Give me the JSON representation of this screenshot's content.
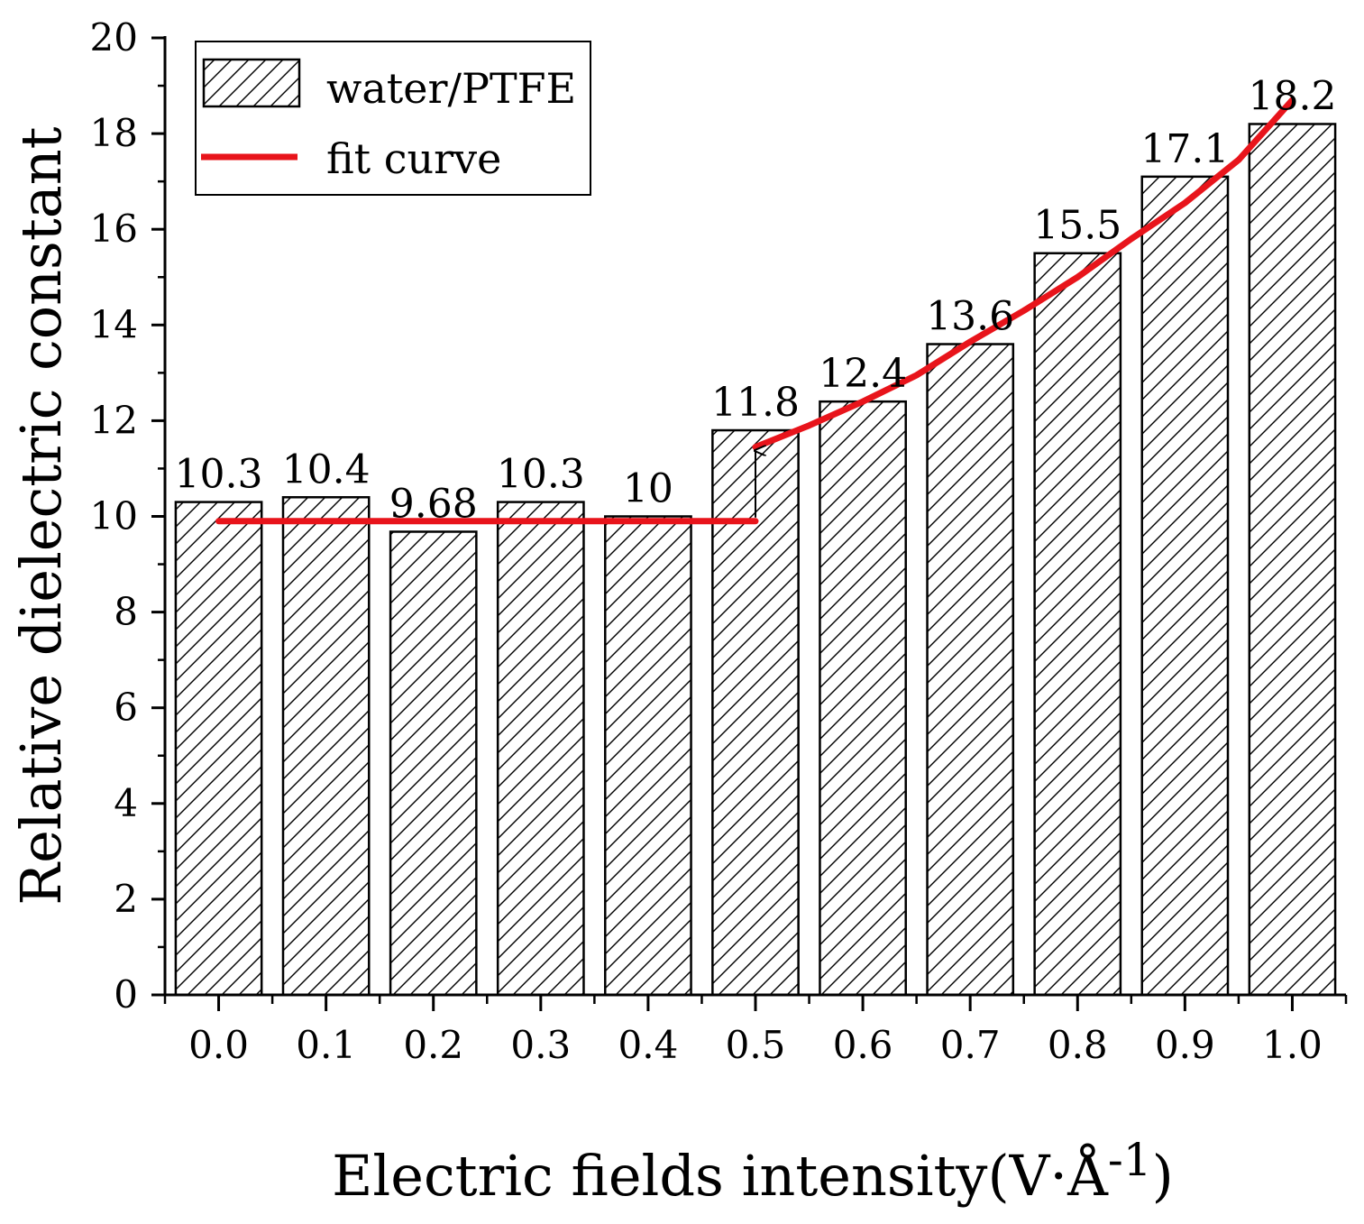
{
  "chart_data": {
    "type": "bar",
    "title": "",
    "xlabel": "Electric fields intensity(V·Å",
    "xlabel_exponent": "-1",
    "xlabel_suffix": ")",
    "ylabel": "Relative dielectric constant",
    "categories": [
      "0.0",
      "0.1",
      "0.2",
      "0.3",
      "0.4",
      "0.5",
      "0.6",
      "0.7",
      "0.8",
      "0.9",
      "1.0"
    ],
    "x": [
      0.0,
      0.1,
      0.2,
      0.3,
      0.4,
      0.5,
      0.6,
      0.7,
      0.8,
      0.9,
      1.0
    ],
    "values": [
      10.3,
      10.4,
      9.68,
      10.3,
      10,
      11.8,
      12.4,
      13.6,
      15.5,
      17.1,
      18.2
    ],
    "value_labels": [
      "10.3",
      "10.4",
      "9.68",
      "10.3",
      "10",
      "11.8",
      "12.4",
      "13.6",
      "15.5",
      "17.1",
      "18.2"
    ],
    "ylim": [
      0,
      20
    ],
    "yticks": [
      0,
      2,
      4,
      6,
      8,
      10,
      12,
      14,
      16,
      18,
      20
    ],
    "xlim": [
      -0.05,
      1.05
    ],
    "grid": false,
    "legend": {
      "position": "top-left",
      "entries": [
        {
          "label": "water/PTFE",
          "kind": "hatched-bar"
        },
        {
          "label": "fit curve",
          "kind": "line"
        }
      ]
    },
    "fit_curve": {
      "color": "#e8141b",
      "flat_segment": {
        "x": [
          0.0,
          0.5
        ],
        "y": [
          9.9,
          9.9
        ]
      },
      "rising_segment": {
        "x": [
          0.5,
          0.55,
          0.6,
          0.65,
          0.7,
          0.75,
          0.8,
          0.85,
          0.9,
          0.95,
          1.0
        ],
        "y": [
          11.45,
          11.9,
          12.4,
          12.95,
          13.65,
          14.3,
          15.0,
          15.8,
          16.55,
          17.45,
          18.7
        ]
      }
    },
    "annotation": {
      "type": "arrow",
      "x": 0.5,
      "from_y": 9.9,
      "to_y": 11.45
    }
  }
}
